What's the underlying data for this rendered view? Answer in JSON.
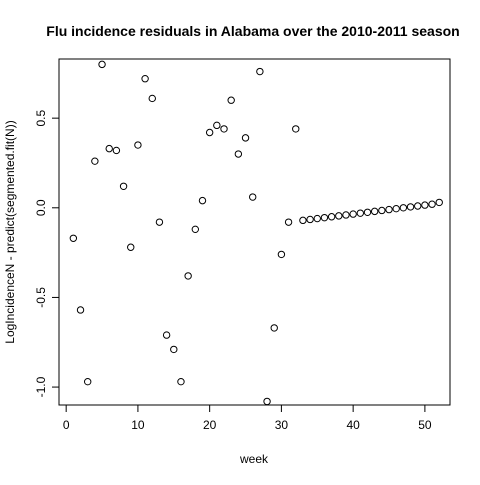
{
  "chart_data": {
    "type": "scatter",
    "title": "Flu incidence residuals in Alabama over the 2010-2011 season",
    "xlabel": "week",
    "ylabel": "LogIncidenceN - predict(segmented.fit(N))",
    "xlim": [
      -1,
      53.5
    ],
    "ylim": [
      -1.1,
      0.83
    ],
    "xticks": [
      0,
      10,
      20,
      30,
      40,
      50
    ],
    "yticks": [
      -1.0,
      -0.5,
      0.0,
      0.5
    ],
    "xtick_labels": [
      "0",
      "10",
      "20",
      "30",
      "40",
      "50"
    ],
    "ytick_labels": [
      "-1.0",
      "-0.5",
      "0.0",
      "0.5"
    ],
    "grid": false,
    "legend": "none",
    "marker": "open-circle",
    "points": [
      {
        "x": 1,
        "y": -0.17
      },
      {
        "x": 2,
        "y": -0.57
      },
      {
        "x": 3,
        "y": -0.97
      },
      {
        "x": 4,
        "y": 0.26
      },
      {
        "x": 5,
        "y": 0.8
      },
      {
        "x": 6,
        "y": 0.33
      },
      {
        "x": 7,
        "y": 0.32
      },
      {
        "x": 8,
        "y": 0.12
      },
      {
        "x": 9,
        "y": -0.22
      },
      {
        "x": 10,
        "y": 0.35
      },
      {
        "x": 11,
        "y": 0.72
      },
      {
        "x": 12,
        "y": 0.61
      },
      {
        "x": 13,
        "y": -0.08
      },
      {
        "x": 14,
        "y": -0.71
      },
      {
        "x": 15,
        "y": -0.79
      },
      {
        "x": 16,
        "y": -0.97
      },
      {
        "x": 17,
        "y": -0.38
      },
      {
        "x": 18,
        "y": -0.12
      },
      {
        "x": 19,
        "y": 0.04
      },
      {
        "x": 20,
        "y": 0.42
      },
      {
        "x": 21,
        "y": 0.46
      },
      {
        "x": 22,
        "y": 0.44
      },
      {
        "x": 23,
        "y": 0.6
      },
      {
        "x": 24,
        "y": 0.3
      },
      {
        "x": 25,
        "y": 0.39
      },
      {
        "x": 26,
        "y": 0.06
      },
      {
        "x": 27,
        "y": 0.76
      },
      {
        "x": 28,
        "y": -1.08
      },
      {
        "x": 29,
        "y": -0.67
      },
      {
        "x": 30,
        "y": -0.26
      },
      {
        "x": 31,
        "y": -0.08
      },
      {
        "x": 32,
        "y": 0.44
      },
      {
        "x": 33,
        "y": -0.07
      },
      {
        "x": 34,
        "y": -0.065
      },
      {
        "x": 35,
        "y": -0.06
      },
      {
        "x": 36,
        "y": -0.055
      },
      {
        "x": 37,
        "y": -0.05
      },
      {
        "x": 38,
        "y": -0.045
      },
      {
        "x": 39,
        "y": -0.04
      },
      {
        "x": 40,
        "y": -0.035
      },
      {
        "x": 41,
        "y": -0.03
      },
      {
        "x": 42,
        "y": -0.025
      },
      {
        "x": 43,
        "y": -0.02
      },
      {
        "x": 44,
        "y": -0.015
      },
      {
        "x": 45,
        "y": -0.01
      },
      {
        "x": 46,
        "y": -0.005
      },
      {
        "x": 47,
        "y": 0.0
      },
      {
        "x": 48,
        "y": 0.005
      },
      {
        "x": 49,
        "y": 0.01
      },
      {
        "x": 50,
        "y": 0.015
      },
      {
        "x": 51,
        "y": 0.02
      },
      {
        "x": 52,
        "y": 0.03
      }
    ]
  }
}
